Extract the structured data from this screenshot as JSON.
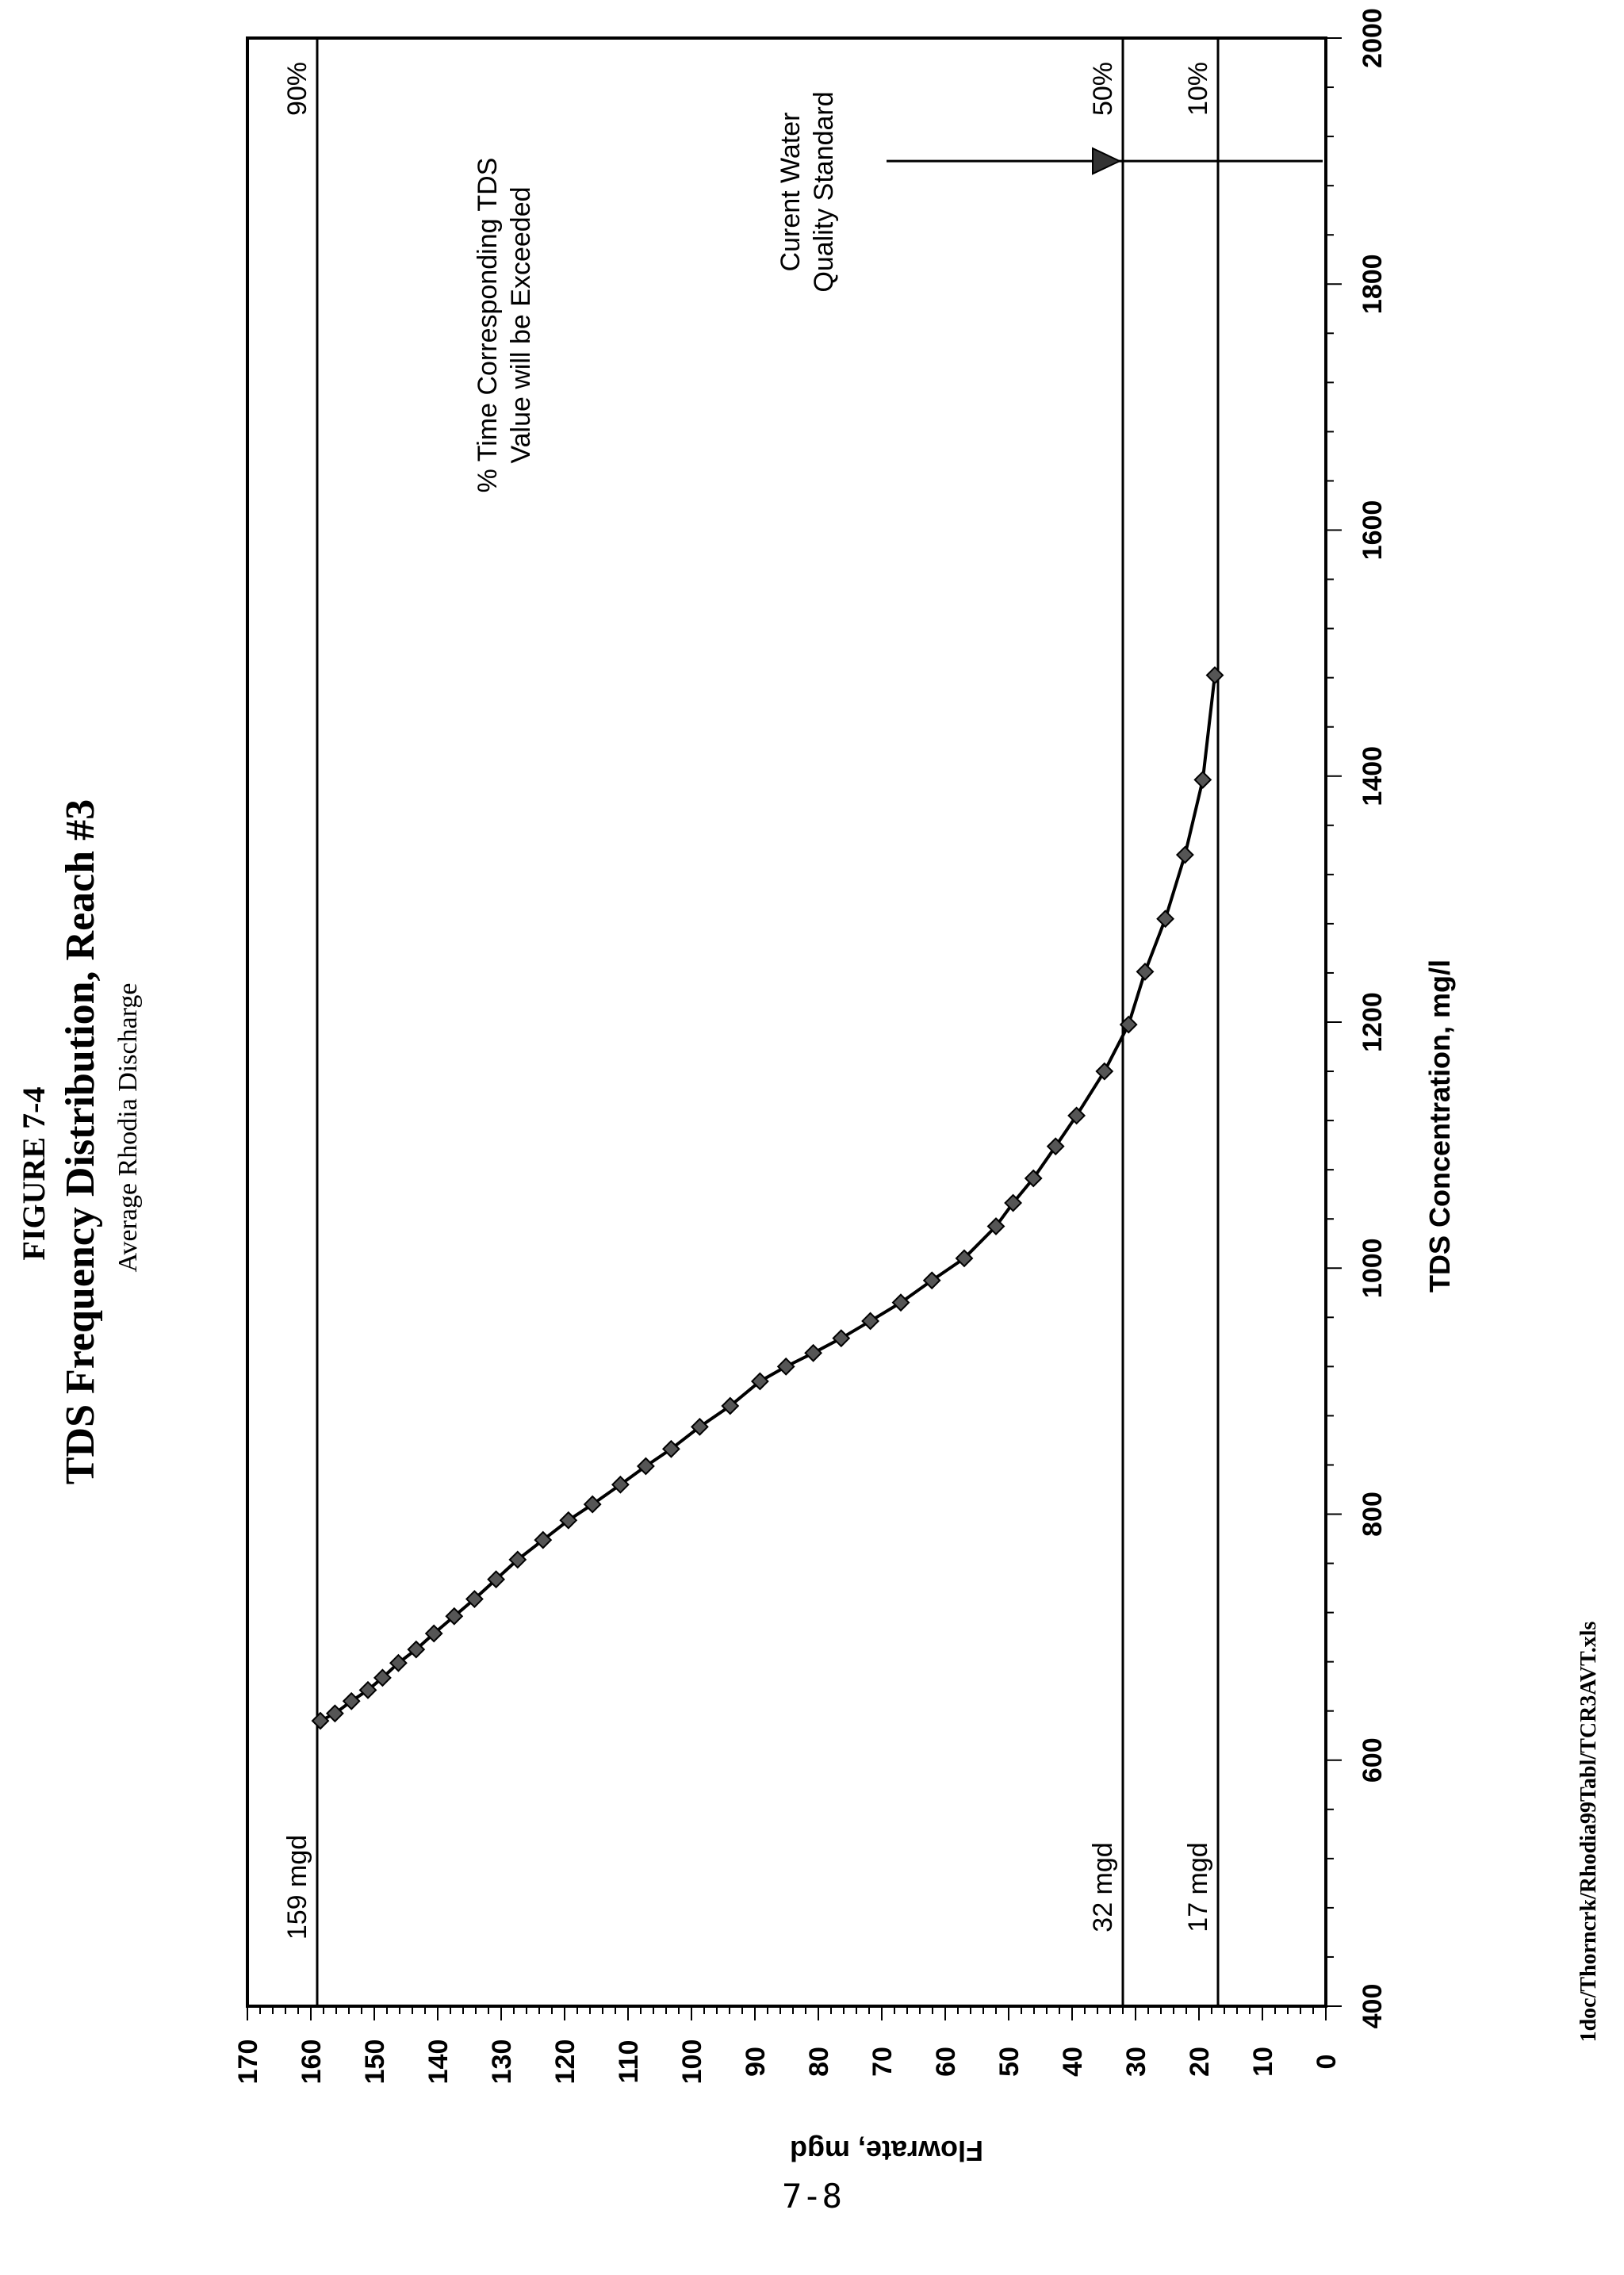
{
  "figure": {
    "label": "FIGURE 7-4",
    "title": "TDS Frequency Distribution, Reach #3",
    "subtitle": "Average Rhodia Discharge",
    "source_file": "1doc/Thorncrk/Rhodia99Tabl/TCR3AVT.xls",
    "page_number": "7-8"
  },
  "annotations": {
    "exceed_label_line1": "% Time Corresponding TDS",
    "exceed_label_line2": "Value will be Exceeded",
    "standard_label_line1": "Curent Water",
    "standard_label_line2": "Quality Standard"
  },
  "chart_data": {
    "type": "line",
    "title": "TDS Frequency Distribution, Reach #3",
    "subtitle": "Average Rhodia Discharge",
    "xlabel": "TDS Concentration, mg/l",
    "ylabel": "Flowrate, mgd",
    "xlim": [
      400,
      2000
    ],
    "ylim": [
      0,
      170
    ],
    "x_ticks": [
      400,
      600,
      800,
      1000,
      1200,
      1400,
      1600,
      1800,
      2000
    ],
    "y_ticks": [
      0,
      10,
      20,
      30,
      40,
      50,
      60,
      70,
      80,
      90,
      100,
      110,
      120,
      130,
      140,
      150,
      160,
      170
    ],
    "grid": false,
    "legend": "none",
    "series": [
      {
        "marker": "diamond",
        "color": "#555555",
        "x": [
          632,
          638,
          648,
          657,
          667,
          679,
          690,
          703,
          717,
          731,
          747,
          763,
          779,
          795,
          808,
          824,
          839,
          853,
          871,
          888,
          908,
          920,
          931,
          943,
          957,
          972,
          990,
          1008,
          1034,
          1053,
          1073,
          1099,
          1124,
          1160,
          1198,
          1241,
          1284,
          1336,
          1397,
          1482
        ],
        "y": [
          158.5,
          156.2,
          153.6,
          151.0,
          148.7,
          146.2,
          143.4,
          140.6,
          137.4,
          134.2,
          130.8,
          127.4,
          123.4,
          119.4,
          115.6,
          111.2,
          107.2,
          103.2,
          98.7,
          93.9,
          89.2,
          85.1,
          80.8,
          76.4,
          71.8,
          67.0,
          62.1,
          57.0,
          52.0,
          49.3,
          46.1,
          42.6,
          39.3,
          34.9,
          31.1,
          28.5,
          25.3,
          22.2,
          19.4,
          17.5
        ]
      }
    ],
    "reference_lines": [
      {
        "kind": "horizontal",
        "y": 159,
        "label": "159 mgd",
        "percent_label": "90%"
      },
      {
        "kind": "horizontal",
        "y": 32,
        "label": "32 mgd",
        "percent_label": "50%"
      },
      {
        "kind": "horizontal",
        "y": 17,
        "label": "17 mgd",
        "percent_label": "10%"
      }
    ],
    "standard_arrow": {
      "x": 1900,
      "label": "Curent Water Quality Standard"
    }
  }
}
